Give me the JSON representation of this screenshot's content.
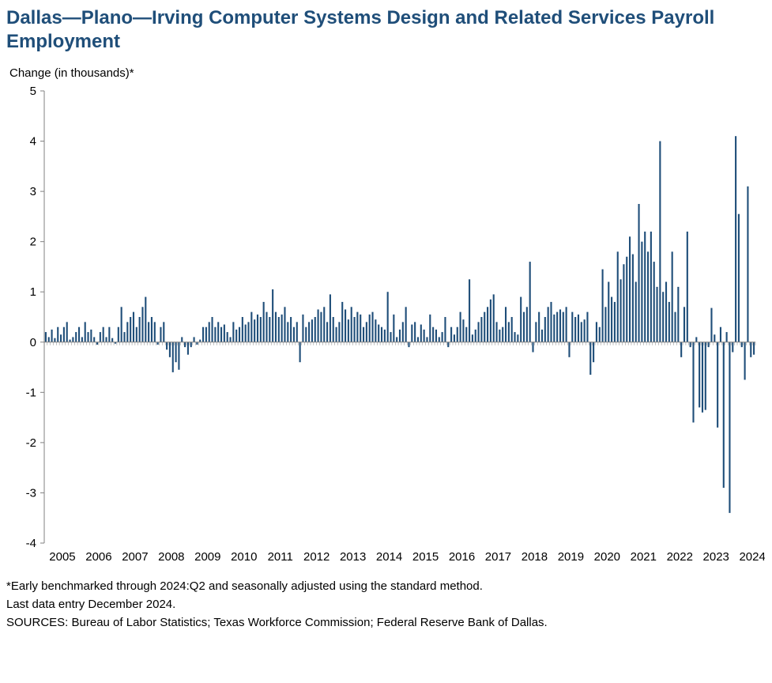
{
  "chart": {
    "type": "bar",
    "title": "Dallas—Plano—Irving Computer Systems Design and Related Services Payroll Employment",
    "ylabel": "Change (in thousands)*",
    "ylim": [
      -4,
      5
    ],
    "ytick_step": 1,
    "yticks": [
      -4,
      -3,
      -2,
      -1,
      0,
      1,
      2,
      3,
      4,
      5
    ],
    "year_labels": [
      "2005",
      "2006",
      "2007",
      "2008",
      "2009",
      "2010",
      "2011",
      "2012",
      "2013",
      "2014",
      "2015",
      "2016",
      "2017",
      "2018",
      "2019",
      "2020",
      "2021",
      "2022",
      "2023",
      "2024"
    ],
    "values": [
      0.2,
      0.1,
      0.25,
      0.08,
      0.3,
      0.15,
      0.3,
      0.4,
      0.05,
      0.1,
      0.2,
      0.3,
      0.1,
      0.4,
      0.2,
      0.25,
      0.1,
      -0.05,
      0.2,
      0.3,
      0.1,
      0.3,
      0.08,
      -0.03,
      0.3,
      0.7,
      0.2,
      0.4,
      0.5,
      0.6,
      0.3,
      0.5,
      0.7,
      0.9,
      0.4,
      0.5,
      0.4,
      -0.05,
      0.3,
      0.4,
      -0.15,
      -0.3,
      -0.6,
      -0.4,
      -0.55,
      0.1,
      -0.1,
      -0.25,
      -0.1,
      0.1,
      -0.05,
      0.05,
      0.3,
      0.3,
      0.4,
      0.5,
      0.3,
      0.4,
      0.3,
      0.35,
      0.2,
      0.1,
      0.4,
      0.25,
      0.3,
      0.5,
      0.35,
      0.4,
      0.6,
      0.45,
      0.55,
      0.5,
      0.8,
      0.6,
      0.5,
      1.05,
      0.6,
      0.5,
      0.55,
      0.7,
      0.4,
      0.5,
      0.3,
      0.4,
      -0.4,
      0.55,
      0.3,
      0.4,
      0.45,
      0.5,
      0.65,
      0.6,
      0.7,
      0.4,
      0.95,
      0.5,
      0.3,
      0.4,
      0.8,
      0.65,
      0.45,
      0.7,
      0.5,
      0.6,
      0.55,
      0.3,
      0.4,
      0.55,
      0.6,
      0.45,
      0.35,
      0.3,
      0.25,
      1.0,
      0.2,
      0.55,
      0.1,
      0.25,
      0.4,
      0.7,
      -0.1,
      0.35,
      0.4,
      0.1,
      0.35,
      0.25,
      0.1,
      0.55,
      0.3,
      0.25,
      0.1,
      0.2,
      0.5,
      -0.1,
      0.3,
      0.15,
      0.3,
      0.6,
      0.45,
      0.3,
      1.25,
      0.15,
      0.25,
      0.4,
      0.5,
      0.6,
      0.7,
      0.85,
      0.95,
      0.4,
      0.25,
      0.3,
      0.7,
      0.4,
      0.5,
      0.2,
      0.15,
      0.9,
      0.6,
      0.7,
      1.6,
      -0.2,
      0.4,
      0.6,
      0.25,
      0.5,
      0.7,
      0.8,
      0.55,
      0.6,
      0.65,
      0.6,
      0.7,
      -0.3,
      0.6,
      0.5,
      0.55,
      0.4,
      0.45,
      0.6,
      -0.65,
      -0.4,
      0.4,
      0.3,
      1.45,
      0.7,
      1.2,
      0.9,
      0.8,
      1.8,
      1.25,
      1.55,
      1.7,
      2.1,
      1.75,
      1.2,
      2.75,
      2.0,
      2.2,
      1.8,
      2.2,
      1.6,
      1.1,
      4.0,
      1.0,
      1.2,
      0.8,
      1.8,
      0.6,
      1.1,
      -0.3,
      0.7,
      2.2,
      -0.1,
      -1.6,
      0.1,
      -1.3,
      -1.4,
      -1.35,
      -0.1,
      0.68,
      0.15,
      -1.7,
      0.3,
      -2.9,
      0.2,
      -3.4,
      -0.2,
      4.1,
      2.55,
      -0.1,
      -0.75,
      3.1,
      -0.3,
      -0.25
    ],
    "bar_color": "#1f4e79",
    "axis_color": "#808080",
    "tick_color": "#808080",
    "background_color": "#ffffff",
    "bar_width_ratio": 0.55,
    "title_fontsize": 24,
    "title_color": "#1f4e79",
    "label_fontsize": 15,
    "tick_label_fontsize": 15,
    "tick_label_color": "#000000"
  },
  "footnotes": {
    "line1": "*Early benchmarked through 2024:Q2 and seasonally adjusted using the standard method.",
    "line2": "Last data entry December 2024.",
    "line3": "SOURCES: Bureau of Labor Statistics; Texas Workforce Commission; Federal Reserve Bank of Dallas."
  }
}
